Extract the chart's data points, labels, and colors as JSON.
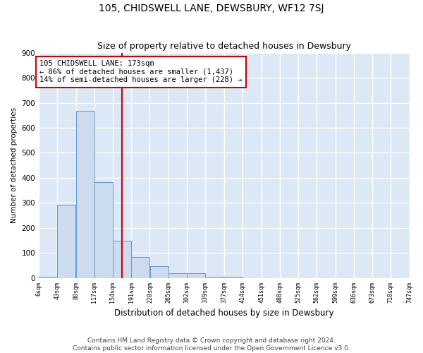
{
  "title": "105, CHIDSWELL LANE, DEWSBURY, WF12 7SJ",
  "subtitle": "Size of property relative to detached houses in Dewsbury",
  "xlabel": "Distribution of detached houses by size in Dewsbury",
  "ylabel": "Number of detached properties",
  "bar_left_edges": [
    6,
    43,
    80,
    117,
    154,
    191,
    228,
    265,
    302,
    339,
    377,
    414,
    451,
    488,
    525,
    562,
    599,
    636,
    673,
    710
  ],
  "bar_heights": [
    5,
    293,
    668,
    383,
    150,
    85,
    47,
    18,
    18,
    5,
    5,
    0,
    0,
    0,
    0,
    0,
    0,
    0,
    0,
    0
  ],
  "bin_width": 37,
  "bar_color": "#ccdcee",
  "bar_edge_color": "#6699cc",
  "property_line_x": 173,
  "property_line_color": "#cc0000",
  "annotation_text": "105 CHIDSWELL LANE: 173sqm\n← 86% of detached houses are smaller (1,437)\n14% of semi-detached houses are larger (228) →",
  "annotation_box_color": "#ffffff",
  "annotation_box_edge_color": "#cc0000",
  "ylim": [
    0,
    900
  ],
  "yticks": [
    0,
    100,
    200,
    300,
    400,
    500,
    600,
    700,
    800,
    900
  ],
  "tick_labels": [
    "6sqm",
    "43sqm",
    "80sqm",
    "117sqm",
    "154sqm",
    "191sqm",
    "228sqm",
    "265sqm",
    "302sqm",
    "339sqm",
    "377sqm",
    "414sqm",
    "451sqm",
    "488sqm",
    "525sqm",
    "562sqm",
    "599sqm",
    "636sqm",
    "673sqm",
    "710sqm",
    "747sqm"
  ],
  "background_color": "#dce8f5",
  "grid_color": "#ffffff",
  "footer_line1": "Contains HM Land Registry data © Crown copyright and database right 2024.",
  "footer_line2": "Contains public sector information licensed under the Open Government Licence v3.0.",
  "title_fontsize": 10,
  "subtitle_fontsize": 9,
  "annotation_fontsize": 7.5,
  "footer_fontsize": 6.5,
  "ylabel_fontsize": 7.5,
  "xlabel_fontsize": 8.5
}
